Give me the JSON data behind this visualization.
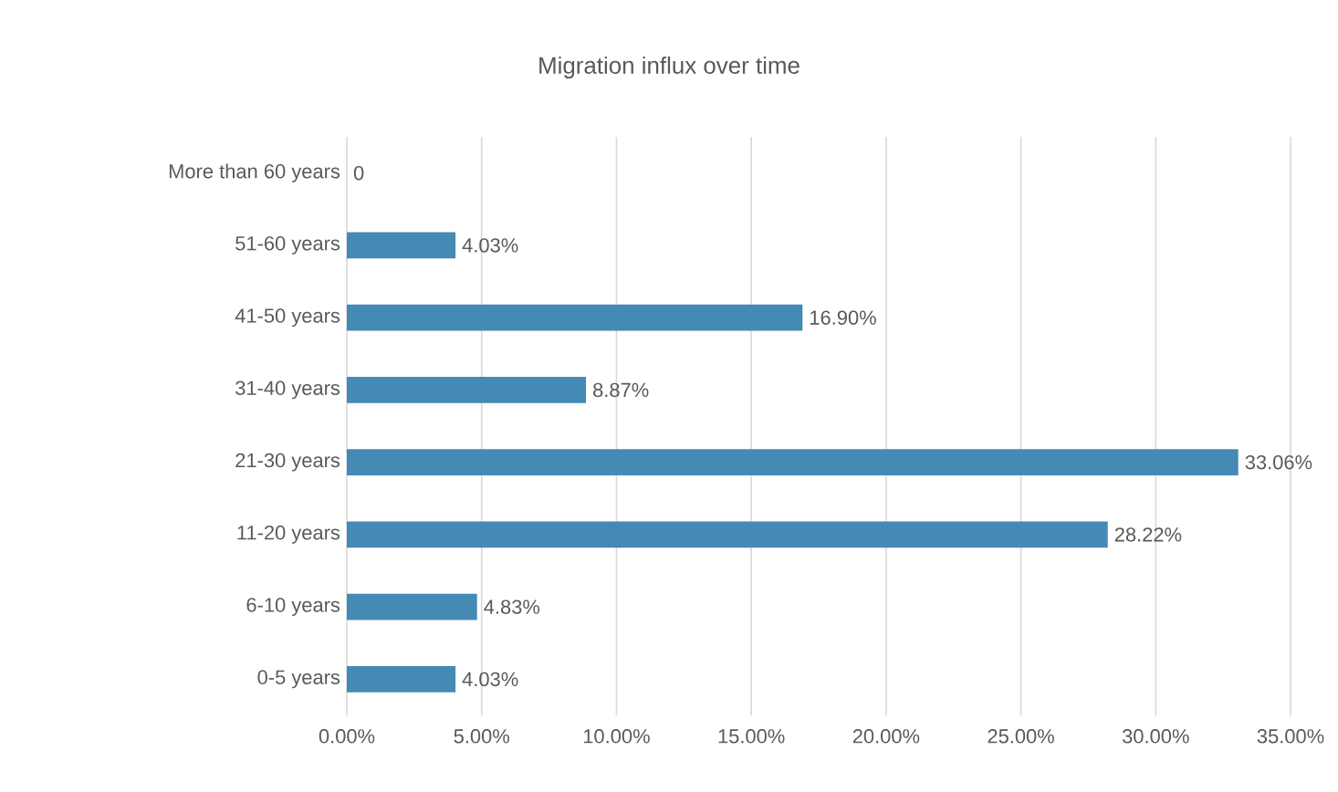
{
  "chart_data": {
    "type": "bar",
    "orientation": "horizontal",
    "title": "Migration influx over time",
    "categories": [
      "More than 60 years",
      "51-60 years",
      "41-50 years",
      "31-40 years",
      "21-30 years",
      "11-20 years",
      "6-10 years",
      "0-5 years"
    ],
    "values": [
      0,
      4.03,
      16.9,
      8.87,
      33.06,
      28.22,
      4.83,
      4.03
    ],
    "value_labels": [
      "0",
      "4.03%",
      "16.90%",
      "8.87%",
      "33.06%",
      "28.22%",
      "4.83%",
      "4.03%"
    ],
    "color": "#4589b5",
    "xlim": [
      0,
      35
    ],
    "xticks": [
      {
        "value": 0,
        "label": "0.00%"
      },
      {
        "value": 5,
        "label": "5.00%"
      },
      {
        "value": 10,
        "label": "10.00%"
      },
      {
        "value": 15,
        "label": "15.00%"
      },
      {
        "value": 20,
        "label": "20.00%"
      },
      {
        "value": 25,
        "label": "25.00%"
      },
      {
        "value": 30,
        "label": "30.00%"
      },
      {
        "value": 35,
        "label": "35.00%"
      }
    ],
    "grid": "x"
  }
}
